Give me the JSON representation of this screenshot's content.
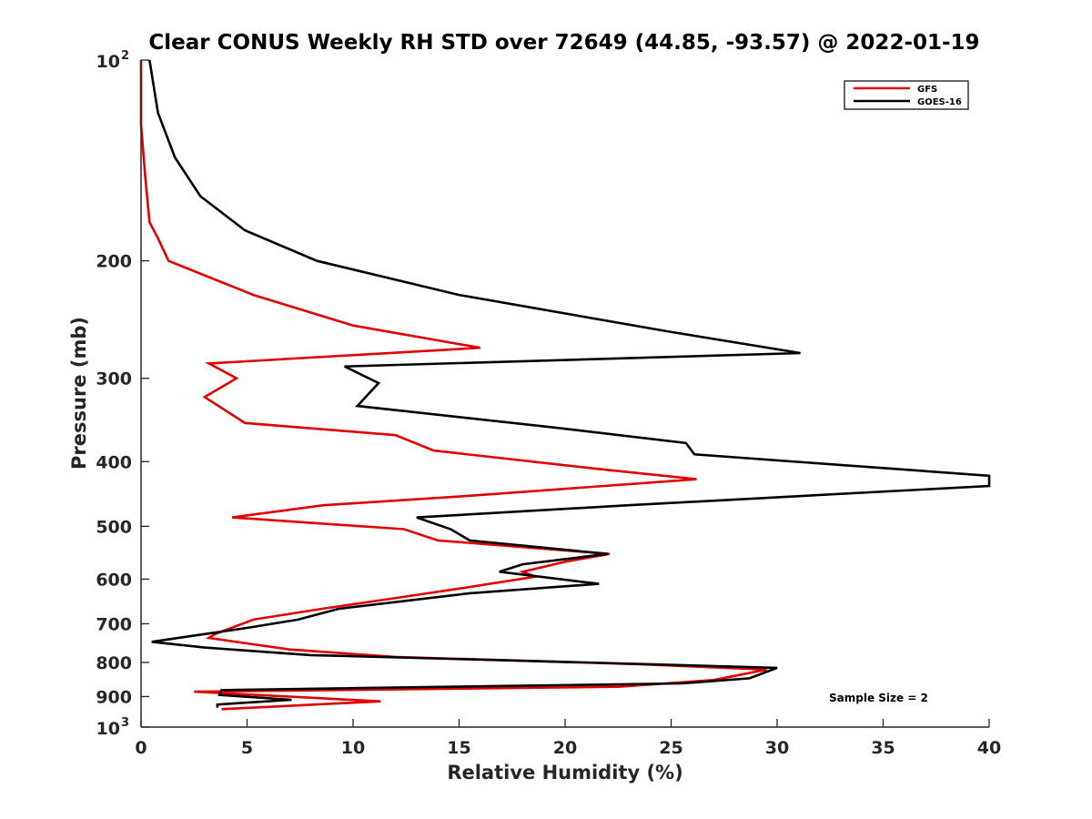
{
  "chart_data": {
    "type": "line",
    "title": "Clear CONUS Weekly RH STD over 72649 (44.85, -93.57) @ 2022-01-19",
    "xlabel": "Relative Humidity (%)",
    "ylabel": "Pressure (mb)",
    "xlim": [
      0,
      40
    ],
    "ylim": [
      100,
      1000
    ],
    "yscale": "log",
    "y_reversed": true,
    "grid": false,
    "legend_position": "top-right",
    "x_ticks": [
      "0",
      "5",
      "10",
      "15",
      "20",
      "25",
      "30",
      "35",
      "40"
    ],
    "y_ticks": [
      {
        "value": 100,
        "base": "10",
        "exp": "2"
      },
      {
        "value": 200,
        "label": "200"
      },
      {
        "value": 300,
        "label": "300"
      },
      {
        "value": 400,
        "label": "400"
      },
      {
        "value": 500,
        "label": "500"
      },
      {
        "value": 600,
        "label": "600"
      },
      {
        "value": 700,
        "label": "700"
      },
      {
        "value": 800,
        "label": "800"
      },
      {
        "value": 900,
        "label": "900"
      },
      {
        "value": 1000,
        "base": "10",
        "exp": "3"
      }
    ],
    "annotation": "Sample Size = 2",
    "series": [
      {
        "name": "GFS",
        "color": "#e00000",
        "points": [
          [
            0.0,
            100
          ],
          [
            0.0,
            125
          ],
          [
            0.2,
            150
          ],
          [
            0.4,
            175
          ],
          [
            0.8,
            185
          ],
          [
            1.3,
            200
          ],
          [
            5.3,
            225
          ],
          [
            10.0,
            250
          ],
          [
            16.0,
            270
          ],
          [
            3.2,
            285
          ],
          [
            4.5,
            300
          ],
          [
            3.0,
            320
          ],
          [
            4.9,
            350
          ],
          [
            12.0,
            365
          ],
          [
            13.8,
            385
          ],
          [
            21.5,
            410
          ],
          [
            26.2,
            425
          ],
          [
            15.5,
            450
          ],
          [
            8.6,
            465
          ],
          [
            4.3,
            485
          ],
          [
            12.4,
            505
          ],
          [
            14.0,
            525
          ],
          [
            22.1,
            550
          ],
          [
            20.0,
            565
          ],
          [
            18.0,
            585
          ],
          [
            18.6,
            595
          ],
          [
            15.0,
            620
          ],
          [
            12.1,
            640
          ],
          [
            8.5,
            665
          ],
          [
            5.3,
            690
          ],
          [
            3.5,
            725
          ],
          [
            3.2,
            735
          ],
          [
            7.0,
            765
          ],
          [
            12.0,
            785
          ],
          [
            23.5,
            805
          ],
          [
            29.5,
            820
          ],
          [
            27.0,
            850
          ],
          [
            22.5,
            870
          ],
          [
            2.5,
            885
          ],
          [
            11.3,
            915
          ],
          [
            3.8,
            940
          ]
        ]
      },
      {
        "name": "GOES-16",
        "color": "#000000",
        "points": [
          [
            0.4,
            100
          ],
          [
            0.8,
            120
          ],
          [
            1.6,
            140
          ],
          [
            2.8,
            160
          ],
          [
            4.9,
            180
          ],
          [
            8.3,
            200
          ],
          [
            15.0,
            225
          ],
          [
            24.8,
            255
          ],
          [
            31.1,
            275
          ],
          [
            9.6,
            288
          ],
          [
            11.2,
            305
          ],
          [
            10.2,
            330
          ],
          [
            19.3,
            355
          ],
          [
            25.7,
            375
          ],
          [
            26.1,
            390
          ],
          [
            40.0,
            420
          ],
          [
            40.0,
            435
          ],
          [
            23.0,
            465
          ],
          [
            13.0,
            485
          ],
          [
            14.6,
            505
          ],
          [
            15.5,
            525
          ],
          [
            22.0,
            550
          ],
          [
            18.0,
            570
          ],
          [
            16.9,
            585
          ],
          [
            21.6,
            610
          ],
          [
            15.5,
            630
          ],
          [
            9.3,
            665
          ],
          [
            7.4,
            690
          ],
          [
            5.0,
            710
          ],
          [
            2.4,
            730
          ],
          [
            0.5,
            745
          ],
          [
            3.0,
            760
          ],
          [
            8.0,
            780
          ],
          [
            21.0,
            800
          ],
          [
            30.0,
            815
          ],
          [
            28.7,
            845
          ],
          [
            25.5,
            860
          ],
          [
            3.8,
            880
          ],
          [
            3.7,
            895
          ],
          [
            7.1,
            910
          ],
          [
            3.6,
            925
          ],
          [
            3.6,
            935
          ]
        ]
      }
    ]
  }
}
